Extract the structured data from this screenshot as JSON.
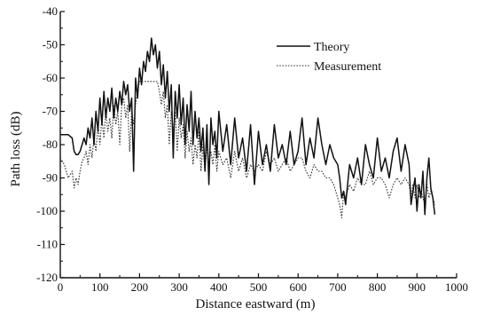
{
  "chart_data": {
    "type": "line",
    "xlabel": "Distance eastward (m)",
    "ylabel": "Path loss (dB)",
    "xlim": [
      0,
      1000
    ],
    "ylim": [
      -120,
      -40
    ],
    "x_ticks": [
      0,
      100,
      200,
      300,
      400,
      500,
      600,
      700,
      800,
      900,
      1000
    ],
    "y_ticks": [
      -40,
      -50,
      -60,
      -70,
      -80,
      -90,
      -100,
      -110,
      -120
    ],
    "grid": false,
    "legend_position": "top-right",
    "series": [
      {
        "name": "Theory",
        "style": "solid",
        "color": "#111111",
        "x": [
          0,
          10,
          20,
          30,
          35,
          40,
          45,
          50,
          55,
          60,
          65,
          70,
          75,
          80,
          85,
          90,
          95,
          100,
          105,
          110,
          115,
          120,
          125,
          130,
          135,
          140,
          145,
          150,
          155,
          160,
          165,
          170,
          175,
          180,
          185,
          190,
          195,
          200,
          205,
          210,
          215,
          220,
          225,
          230,
          235,
          240,
          245,
          250,
          255,
          260,
          265,
          270,
          275,
          280,
          285,
          290,
          295,
          300,
          305,
          310,
          315,
          320,
          325,
          330,
          335,
          340,
          345,
          350,
          355,
          360,
          365,
          370,
          375,
          380,
          385,
          390,
          395,
          400,
          410,
          420,
          430,
          440,
          450,
          460,
          470,
          480,
          490,
          500,
          510,
          520,
          530,
          540,
          550,
          560,
          570,
          580,
          590,
          600,
          610,
          620,
          630,
          640,
          650,
          660,
          670,
          680,
          690,
          700,
          705,
          710,
          715,
          720,
          730,
          740,
          750,
          760,
          770,
          780,
          790,
          800,
          810,
          820,
          830,
          840,
          850,
          860,
          870,
          880,
          885,
          890,
          895,
          900,
          905,
          910,
          915,
          920,
          925,
          930,
          935,
          940,
          945
        ],
        "values": [
          -77,
          -77,
          -77,
          -78,
          -82,
          -83,
          -83,
          -82,
          -80,
          -78,
          -80,
          -75,
          -78,
          -72,
          -80,
          -70,
          -76,
          -66,
          -74,
          -64,
          -72,
          -66,
          -70,
          -63,
          -72,
          -66,
          -70,
          -64,
          -68,
          -61,
          -65,
          -62,
          -70,
          -66,
          -88,
          -60,
          -66,
          -57,
          -62,
          -55,
          -58,
          -52,
          -55,
          -48,
          -53,
          -50,
          -57,
          -52,
          -62,
          -56,
          -66,
          -58,
          -70,
          -62,
          -84,
          -64,
          -72,
          -62,
          -74,
          -66,
          -80,
          -68,
          -76,
          -64,
          -80,
          -70,
          -78,
          -72,
          -82,
          -75,
          -88,
          -74,
          -92,
          -72,
          -80,
          -76,
          -84,
          -70,
          -82,
          -74,
          -86,
          -72,
          -84,
          -78,
          -88,
          -74,
          -92,
          -76,
          -86,
          -80,
          -88,
          -74,
          -84,
          -80,
          -86,
          -76,
          -86,
          -82,
          -72,
          -86,
          -78,
          -84,
          -72,
          -80,
          -86,
          -80,
          -84,
          -86,
          -90,
          -96,
          -94,
          -98,
          -86,
          -90,
          -84,
          -92,
          -80,
          -86,
          -90,
          -78,
          -88,
          -84,
          -90,
          -82,
          -78,
          -88,
          -80,
          -86,
          -98,
          -94,
          -90,
          -100,
          -92,
          -96,
          -88,
          -101,
          -90,
          -84,
          -93,
          -96,
          -101
        ]
      },
      {
        "name": "Measurement",
        "style": "dotted",
        "color": "#333333",
        "x": [
          0,
          10,
          20,
          30,
          35,
          40,
          45,
          50,
          55,
          60,
          65,
          70,
          75,
          80,
          85,
          90,
          95,
          100,
          105,
          110,
          115,
          120,
          125,
          130,
          135,
          140,
          145,
          150,
          155,
          160,
          165,
          170,
          175,
          180,
          185,
          190,
          195,
          200,
          210,
          220,
          230,
          240,
          245,
          250,
          255,
          260,
          265,
          270,
          275,
          280,
          285,
          290,
          295,
          300,
          305,
          310,
          315,
          320,
          325,
          330,
          335,
          340,
          345,
          350,
          355,
          360,
          365,
          370,
          375,
          380,
          385,
          390,
          395,
          400,
          410,
          420,
          430,
          440,
          450,
          460,
          470,
          480,
          490,
          500,
          510,
          520,
          530,
          540,
          550,
          560,
          570,
          580,
          590,
          600,
          610,
          620,
          630,
          640,
          650,
          660,
          670,
          680,
          690,
          700,
          705,
          710,
          715,
          720,
          730,
          740,
          750,
          760,
          770,
          780,
          790,
          800,
          810,
          820,
          830,
          840,
          850,
          860,
          870,
          880,
          885,
          890,
          895,
          900,
          905,
          910,
          915,
          920,
          925,
          930,
          935,
          940,
          945
        ],
        "values": [
          -84,
          -86,
          -90,
          -88,
          -93,
          -90,
          -92,
          -88,
          -85,
          -84,
          -82,
          -86,
          -80,
          -84,
          -78,
          -82,
          -74,
          -80,
          -72,
          -78,
          -70,
          -76,
          -72,
          -78,
          -68,
          -74,
          -70,
          -80,
          -68,
          -66,
          -72,
          -68,
          -82,
          -70,
          -74,
          -68,
          -64,
          -61,
          -61,
          -61,
          -61,
          -61,
          -61,
          -64,
          -68,
          -64,
          -72,
          -68,
          -80,
          -70,
          -76,
          -70,
          -82,
          -72,
          -78,
          -74,
          -84,
          -76,
          -82,
          -78,
          -86,
          -80,
          -84,
          -76,
          -88,
          -80,
          -88,
          -80,
          -86,
          -82,
          -86,
          -80,
          -88,
          -82,
          -86,
          -84,
          -90,
          -82,
          -88,
          -84,
          -90,
          -86,
          -88,
          -86,
          -88,
          -82,
          -86,
          -84,
          -88,
          -86,
          -84,
          -88,
          -86,
          -84,
          -84,
          -88,
          -90,
          -86,
          -88,
          -88,
          -90,
          -90,
          -92,
          -96,
          -98,
          -102,
          -94,
          -96,
          -92,
          -94,
          -90,
          -92,
          -92,
          -88,
          -92,
          -90,
          -90,
          -92,
          -96,
          -92,
          -90,
          -92,
          -90,
          -92,
          -96,
          -92,
          -96,
          -92,
          -96,
          -94,
          -96,
          -98,
          -92,
          -96,
          -94,
          -96,
          -98
        ]
      }
    ]
  }
}
